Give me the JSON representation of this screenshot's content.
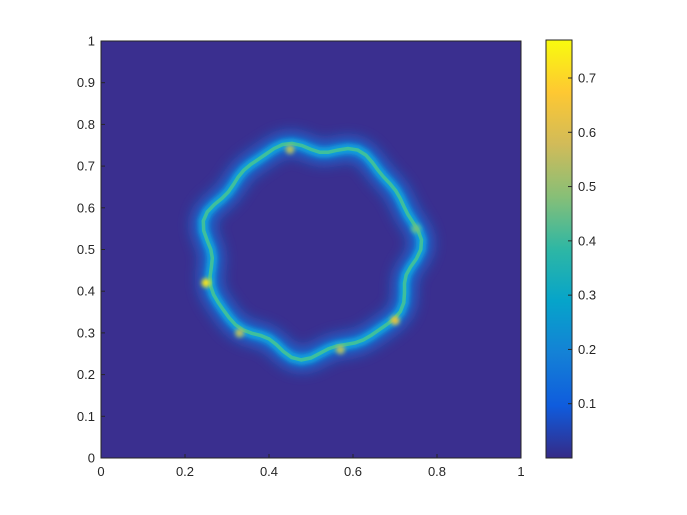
{
  "chart_data": {
    "type": "heatmap",
    "title": "",
    "xlabel": "",
    "ylabel": "",
    "xlim": [
      0,
      1
    ],
    "ylim": [
      0,
      1
    ],
    "x_ticks": [
      0,
      0.2,
      0.4,
      0.6,
      0.8,
      1
    ],
    "x_tick_labels": [
      "0",
      "0.2",
      "0.4",
      "0.6",
      "0.8",
      "1"
    ],
    "y_ticks": [
      0,
      0.1,
      0.2,
      0.3,
      0.4,
      0.5,
      0.6,
      0.7,
      0.8,
      0.9,
      1
    ],
    "y_tick_labels": [
      "0",
      "0.1",
      "0.2",
      "0.3",
      "0.4",
      "0.5",
      "0.6",
      "0.7",
      "0.8",
      "0.9",
      "1"
    ],
    "colormap": "parula",
    "colorbar": {
      "limits": [
        0.0,
        0.77
      ],
      "ticks": [
        0.1,
        0.2,
        0.3,
        0.4,
        0.5,
        0.6,
        0.7
      ],
      "tick_labels": [
        "0.1",
        "0.2",
        "0.3",
        "0.4",
        "0.5",
        "0.6",
        "0.7"
      ],
      "location": "east"
    },
    "background_value": 0.0,
    "ring": {
      "center": [
        0.5,
        0.5
      ],
      "radius": 0.25,
      "peak_value": 0.77,
      "description_points": [
        {
          "x": 0.25,
          "y": 0.42,
          "value": 0.77
        },
        {
          "x": 0.33,
          "y": 0.3,
          "value": 0.6
        },
        {
          "x": 0.57,
          "y": 0.26,
          "value": 0.6
        },
        {
          "x": 0.7,
          "y": 0.33,
          "value": 0.65
        },
        {
          "x": 0.45,
          "y": 0.74,
          "value": 0.6
        },
        {
          "x": 0.75,
          "y": 0.55,
          "value": 0.4
        }
      ]
    }
  }
}
